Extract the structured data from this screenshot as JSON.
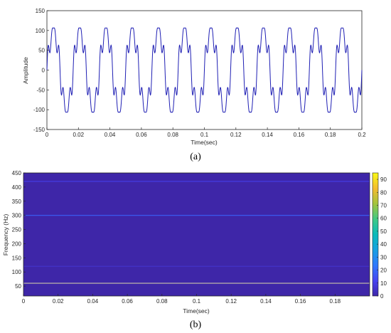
{
  "chart_data": [
    {
      "type": "line",
      "xlabel": "Time(sec)",
      "ylabel": "Amplitude",
      "xlim": [
        0,
        0.2
      ],
      "ylim": [
        -150,
        150
      ],
      "xticks": [
        "0",
        "0.02",
        "0.04",
        "0.06",
        "0.08",
        "0.1",
        "0.12",
        "0.14",
        "0.16",
        "0.18",
        "0.2"
      ],
      "yticks": [
        "150",
        "100",
        "50",
        "0",
        "-50",
        "-100",
        "-150"
      ],
      "line_color": "#1f1fb4",
      "series": [
        {
          "components": [
            {
              "frequency_hz": 60,
              "amplitude": 100
            },
            {
              "frequency_hz": 300,
              "amplitude": 20
            },
            {
              "frequency_hz": 420,
              "amplitude": 14
            }
          ]
        }
      ],
      "caption": "(a)"
    },
    {
      "type": "heatmap",
      "xlabel": "Time(sec)",
      "ylabel": "Frequency (Hz)",
      "xlim": [
        0,
        0.2
      ],
      "ylim": [
        15,
        450
      ],
      "xticks": [
        "0",
        "0.02",
        "0.04",
        "0.06",
        "0.08",
        "0.1",
        "0.12",
        "0.14",
        "0.16",
        "0.18"
      ],
      "yticks": [
        "450",
        "400",
        "350",
        "300",
        "250",
        "200",
        "150",
        "100",
        "50"
      ],
      "background_value": 0,
      "lines": [
        {
          "frequency_hz": 60,
          "value": 92
        },
        {
          "frequency_hz": 120,
          "value": 6
        },
        {
          "frequency_hz": 300,
          "value": 18
        },
        {
          "frequency_hz": 420,
          "value": 10
        }
      ],
      "colorbar": {
        "min": 0,
        "max": 95,
        "ticks": [
          "90",
          "80",
          "70",
          "60",
          "50",
          "40",
          "30",
          "20",
          "10",
          "0"
        ],
        "colormap": "parula"
      },
      "caption": "(b)"
    }
  ]
}
